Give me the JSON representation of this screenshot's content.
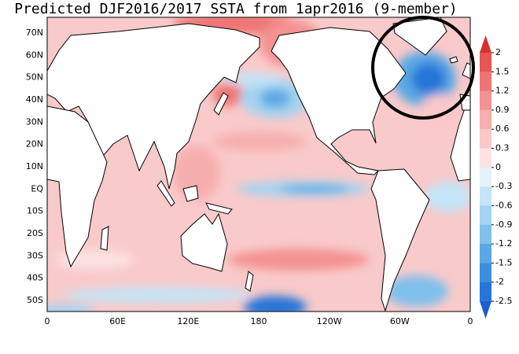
{
  "title": "Predicted DJF2016/2017 SSTA from 1apr2016 (9-member)",
  "map": {
    "lat_labels": [
      "70N",
      "60N",
      "50N",
      "40N",
      "30N",
      "20N",
      "10N",
      "EQ",
      "10S",
      "20S",
      "30S",
      "40S",
      "50S"
    ],
    "lon_labels": [
      "0",
      "60E",
      "120E",
      "180",
      "120W",
      "60W",
      "0"
    ]
  },
  "colorbar": {
    "ticks": [
      2,
      1.5,
      1.2,
      0.9,
      0.6,
      0.3,
      0,
      -0.3,
      -0.6,
      -0.9,
      -1.2,
      -1.5,
      -2,
      -2.5
    ],
    "colors": [
      "#d83030",
      "#e85555",
      "#f07474",
      "#f49292",
      "#f7aeae",
      "#fac8c8",
      "#fde2e2",
      "#e4f2fb",
      "#c4e4f7",
      "#a4d4f2",
      "#80c0ec",
      "#5aa8e4",
      "#3c8ee0",
      "#2874d8",
      "#1a5ed0"
    ]
  }
}
